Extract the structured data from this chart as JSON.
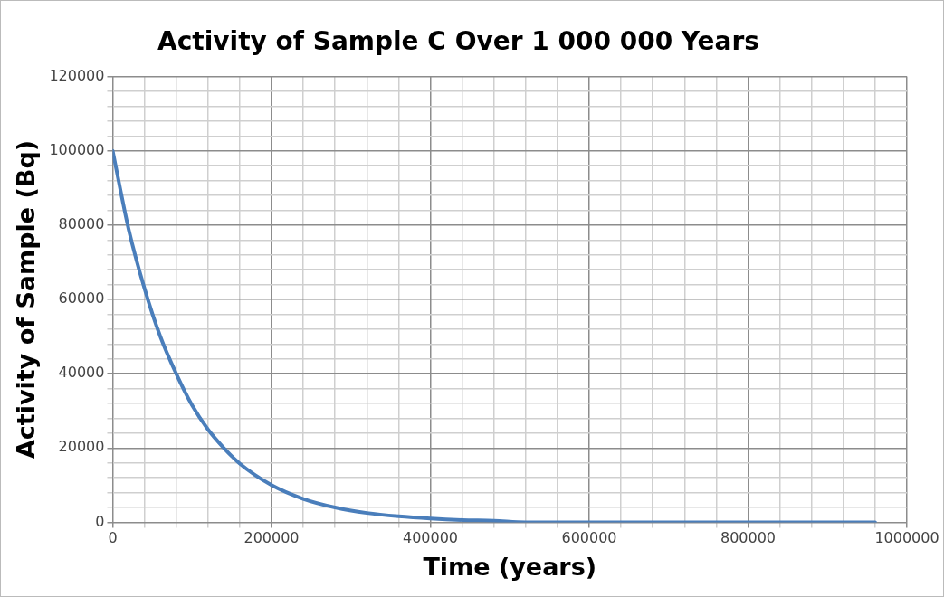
{
  "chart_data": {
    "type": "line",
    "title": "Activity of Sample C Over 1 000 000 Years",
    "xlabel": "Time (years)",
    "ylabel": "Activity of Sample (Bq)",
    "x": [
      0,
      20000,
      40000,
      60000,
      80000,
      100000,
      120000,
      140000,
      160000,
      200000,
      240000,
      280000,
      320000,
      360000,
      400000,
      440000,
      480000,
      520000,
      560000,
      600000,
      700000,
      800000,
      960000
    ],
    "series": [
      {
        "color": "#4a7ebb",
        "values": [
          100000,
          79000,
          63000,
          50000,
          40000,
          31500,
          25000,
          20000,
          15800,
          10000,
          6300,
          4000,
          2500,
          1600,
          1000,
          600,
          400,
          0,
          0,
          0,
          0,
          0,
          0
        ]
      }
    ],
    "xlim": [
      0,
      1000000
    ],
    "ylim": [
      0,
      120000
    ],
    "xticks": [
      0,
      {
        "value": 40000,
        "label": null
      },
      {
        "value": 80000,
        "label": null
      },
      {
        "value": 120000,
        "label": null
      },
      {
        "value": 160000,
        "label": null
      },
      200000,
      {
        "value": 240000,
        "label": null
      },
      {
        "value": 280000,
        "label": null
      },
      {
        "value": 320000,
        "label": null
      },
      {
        "value": 360000,
        "label": null
      },
      400000,
      {
        "value": 440000,
        "label": null
      },
      {
        "value": 480000,
        "label": null
      },
      {
        "value": 520000,
        "label": null
      },
      {
        "value": 560000,
        "label": null
      },
      600000,
      {
        "value": 640000,
        "label": null
      },
      {
        "value": 680000,
        "label": null
      },
      {
        "value": 720000,
        "label": null
      },
      {
        "value": 760000,
        "label": null
      },
      800000,
      {
        "value": 840000,
        "label": null
      },
      {
        "value": 880000,
        "label": null
      },
      {
        "value": 920000,
        "label": null
      },
      {
        "value": 960000,
        "label": null
      },
      1000000
    ],
    "yticks": [
      0,
      {
        "value": 4000,
        "label": null
      },
      {
        "value": 8000,
        "label": null
      },
      {
        "value": 12000,
        "label": null
      },
      {
        "value": 16000,
        "label": null
      },
      20000,
      {
        "value": 24000,
        "label": null
      },
      {
        "value": 28000,
        "label": null
      },
      {
        "value": 32000,
        "label": null
      },
      {
        "value": 36000,
        "label": null
      },
      40000,
      {
        "value": 44000,
        "label": null
      },
      {
        "value": 48000,
        "label": null
      },
      {
        "value": 52000,
        "label": null
      },
      {
        "value": 56000,
        "label": null
      },
      60000,
      {
        "value": 64000,
        "label": null
      },
      {
        "value": 68000,
        "label": null
      },
      {
        "value": 72000,
        "label": null
      },
      {
        "value": 76000,
        "label": null
      },
      80000,
      {
        "value": 84000,
        "label": null
      },
      {
        "value": 88000,
        "label": null
      },
      {
        "value": 92000,
        "label": null
      },
      {
        "value": 96000,
        "label": null
      },
      100000,
      {
        "value": 104000,
        "label": null
      },
      {
        "value": 108000,
        "label": null
      },
      {
        "value": 112000,
        "label": null
      },
      {
        "value": 116000,
        "label": null
      },
      120000
    ],
    "grid": true,
    "marker": "none",
    "line_style": "solid"
  }
}
